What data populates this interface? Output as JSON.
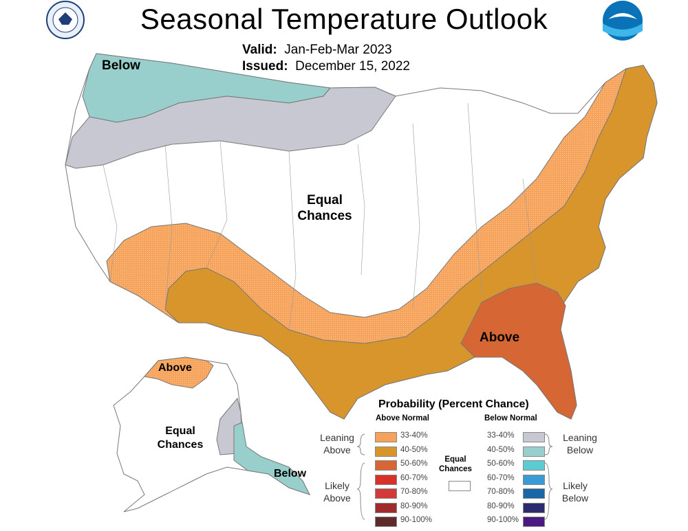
{
  "header": {
    "title": "Seasonal Temperature Outlook",
    "valid_label": "Valid:",
    "valid_value": "Jan-Feb-Mar 2023",
    "issued_label": "Issued:",
    "issued_value": "December 15, 2022",
    "logo_noaa_text": "NOAA"
  },
  "map_labels": {
    "conus_below": "Below",
    "conus_equal_line1": "Equal",
    "conus_equal_line2": "Chances",
    "conus_above": "Above",
    "ak_above": "Above",
    "ak_equal_line1": "Equal",
    "ak_equal_line2": "Chances",
    "ak_below": "Below"
  },
  "legend": {
    "title": "Probability (Percent Chance)",
    "above_heading": "Above Normal",
    "below_heading": "Below Normal",
    "above_rows": [
      {
        "label": "33-40%",
        "color": "#f7a25a"
      },
      {
        "label": "40-50%",
        "color": "#d8952c"
      },
      {
        "label": "50-60%",
        "color": "#d66633"
      },
      {
        "label": "60-70%",
        "color": "#d6322a"
      },
      {
        "label": "70-80%",
        "color": "#d23a3a"
      },
      {
        "label": "80-90%",
        "color": "#9e2c2c"
      },
      {
        "label": "90-100%",
        "color": "#5e2b2b"
      }
    ],
    "below_rows": [
      {
        "label": "33-40%",
        "color": "#c8c8d2"
      },
      {
        "label": "40-50%",
        "color": "#98cfcc"
      },
      {
        "label": "50-60%",
        "color": "#5ccbd2"
      },
      {
        "label": "60-70%",
        "color": "#3a9ad6"
      },
      {
        "label": "70-80%",
        "color": "#1a66a6"
      },
      {
        "label": "80-90%",
        "color": "#2b2b6e"
      },
      {
        "label": "90-100%",
        "color": "#4b1a80"
      }
    ],
    "leaning_above_1": "Leaning",
    "leaning_above_2": "Above",
    "likely_above_1": "Likely",
    "likely_above_2": "Above",
    "leaning_below_1": "Leaning",
    "leaning_below_2": "Below",
    "likely_below_1": "Likely",
    "likely_below_2": "Below",
    "equal_chances_1": "Equal",
    "equal_chances_2": "Chances",
    "equal_chances_color": "#ffffff"
  }
}
